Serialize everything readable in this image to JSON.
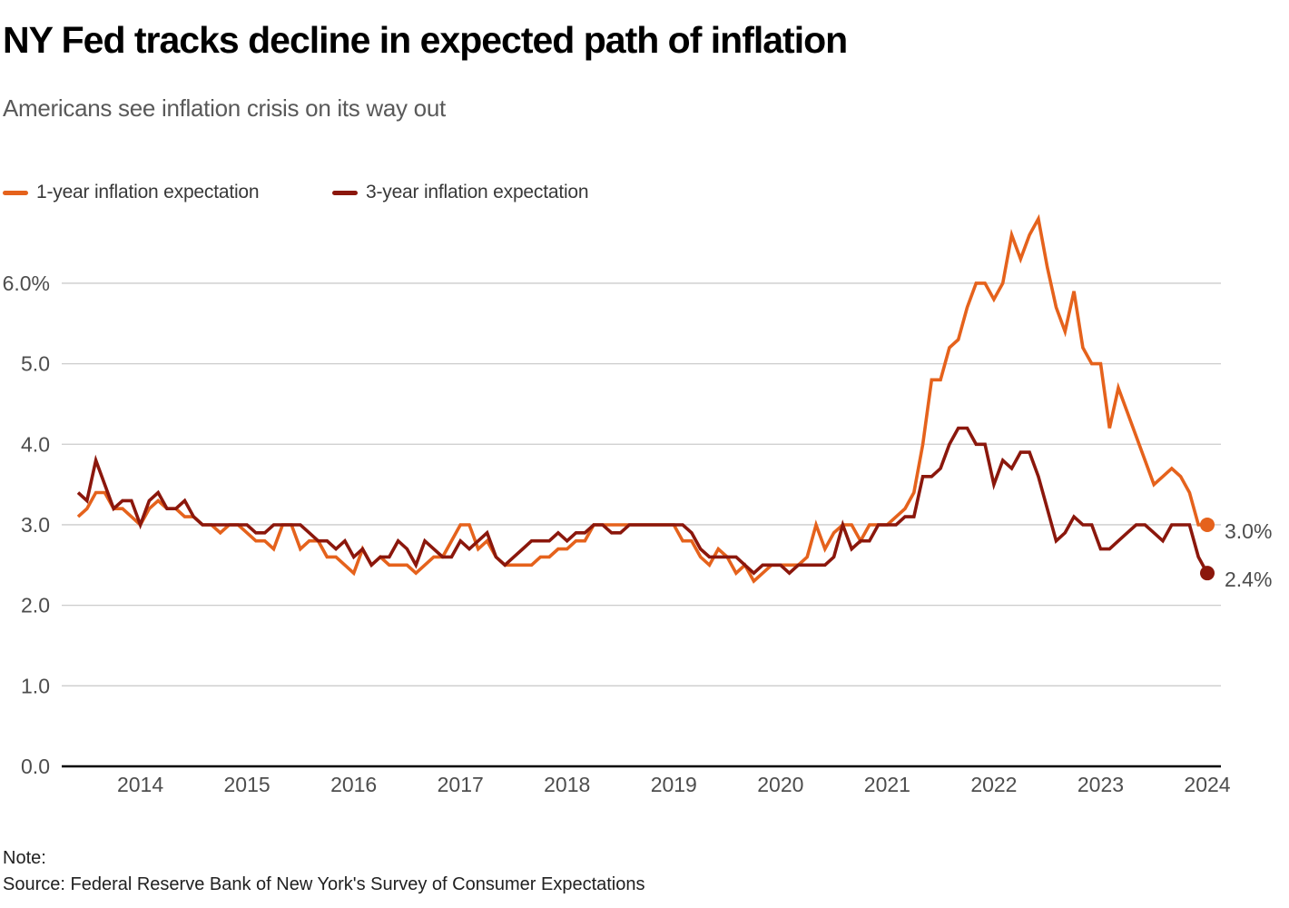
{
  "header": {
    "title": "NY Fed tracks decline in expected path of inflation",
    "subtitle": "Americans see inflation crisis on its way out"
  },
  "legend": {
    "items": [
      {
        "label": "1-year inflation expectation",
        "color": "#E5621C"
      },
      {
        "label": "3-year inflation expectation",
        "color": "#8B170C"
      }
    ]
  },
  "colors": {
    "orange": "#E5621C",
    "dark_red": "#8B170C",
    "gridline": "#cccccc",
    "axis": "#000000",
    "tick_text": "#4d4d4d",
    "end_label_text": "#4d4d4d"
  },
  "chart_data": {
    "type": "line",
    "unit": "%",
    "frequency": "monthly",
    "x_start": "2013-06",
    "x_end": "2024-01",
    "ylim": [
      0,
      6.8
    ],
    "grid": "horizontal",
    "legend_position": "top-left",
    "yticks": [
      {
        "value": 0,
        "label": "0.0"
      },
      {
        "value": 1,
        "label": "1.0"
      },
      {
        "value": 2,
        "label": "2.0"
      },
      {
        "value": 3,
        "label": "3.0"
      },
      {
        "value": 4,
        "label": "4.0"
      },
      {
        "value": 5,
        "label": "5.0"
      },
      {
        "value": 6,
        "label": "6.0%"
      }
    ],
    "xticks": [
      "2014",
      "2015",
      "2016",
      "2017",
      "2018",
      "2019",
      "2020",
      "2021",
      "2022",
      "2023",
      "2024"
    ],
    "series": [
      {
        "name": "1-year inflation expectation",
        "color": "#E5621C",
        "end_label": "3.0%",
        "end_value": 3.0,
        "values": [
          3.1,
          3.2,
          3.4,
          3.4,
          3.2,
          3.2,
          3.1,
          3.0,
          3.2,
          3.3,
          3.2,
          3.2,
          3.1,
          3.1,
          3.0,
          3.0,
          2.9,
          3.0,
          3.0,
          2.9,
          2.8,
          2.8,
          2.7,
          3.0,
          3.0,
          2.7,
          2.8,
          2.8,
          2.6,
          2.6,
          2.5,
          2.4,
          2.7,
          2.5,
          2.6,
          2.5,
          2.5,
          2.5,
          2.4,
          2.5,
          2.6,
          2.6,
          2.8,
          3.0,
          3.0,
          2.7,
          2.8,
          2.6,
          2.5,
          2.5,
          2.5,
          2.5,
          2.6,
          2.6,
          2.7,
          2.7,
          2.8,
          2.8,
          3.0,
          3.0,
          3.0,
          3.0,
          3.0,
          3.0,
          3.0,
          3.0,
          3.0,
          3.0,
          2.8,
          2.8,
          2.6,
          2.5,
          2.7,
          2.6,
          2.4,
          2.5,
          2.3,
          2.4,
          2.5,
          2.5,
          2.5,
          2.5,
          2.6,
          3.0,
          2.7,
          2.9,
          3.0,
          3.0,
          2.8,
          3.0,
          3.0,
          3.0,
          3.1,
          3.2,
          3.4,
          4.0,
          4.8,
          4.8,
          5.2,
          5.3,
          5.7,
          6.0,
          6.0,
          5.8,
          6.0,
          6.6,
          6.3,
          6.6,
          6.8,
          6.2,
          5.7,
          5.4,
          5.9,
          5.2,
          5.0,
          5.0,
          4.2,
          4.7,
          4.4,
          4.1,
          3.8,
          3.5,
          3.6,
          3.7,
          3.6,
          3.4,
          3.0,
          3.0
        ]
      },
      {
        "name": "3-year inflation expectation",
        "color": "#8B170C",
        "end_label": "2.4%",
        "end_value": 2.4,
        "values": [
          3.4,
          3.3,
          3.8,
          3.5,
          3.2,
          3.3,
          3.3,
          3.0,
          3.3,
          3.4,
          3.2,
          3.2,
          3.3,
          3.1,
          3.0,
          3.0,
          3.0,
          3.0,
          3.0,
          3.0,
          2.9,
          2.9,
          3.0,
          3.0,
          3.0,
          3.0,
          2.9,
          2.8,
          2.8,
          2.7,
          2.8,
          2.6,
          2.7,
          2.5,
          2.6,
          2.6,
          2.8,
          2.7,
          2.5,
          2.8,
          2.7,
          2.6,
          2.6,
          2.8,
          2.7,
          2.8,
          2.9,
          2.6,
          2.5,
          2.6,
          2.7,
          2.8,
          2.8,
          2.8,
          2.9,
          2.8,
          2.9,
          2.9,
          3.0,
          3.0,
          2.9,
          2.9,
          3.0,
          3.0,
          3.0,
          3.0,
          3.0,
          3.0,
          3.0,
          2.9,
          2.7,
          2.6,
          2.6,
          2.6,
          2.6,
          2.5,
          2.4,
          2.5,
          2.5,
          2.5,
          2.4,
          2.5,
          2.5,
          2.5,
          2.5,
          2.6,
          3.0,
          2.7,
          2.8,
          2.8,
          3.0,
          3.0,
          3.0,
          3.1,
          3.1,
          3.6,
          3.6,
          3.7,
          4.0,
          4.2,
          4.2,
          4.0,
          4.0,
          3.5,
          3.8,
          3.7,
          3.9,
          3.9,
          3.6,
          3.2,
          2.8,
          2.9,
          3.1,
          3.0,
          3.0,
          2.7,
          2.7,
          2.8,
          2.9,
          3.0,
          3.0,
          2.9,
          2.8,
          3.0,
          3.0,
          3.0,
          2.6,
          2.4
        ]
      }
    ]
  },
  "footer": {
    "note": "Note:",
    "source": "Source: Federal Reserve Bank of New York's Survey of Consumer Expectations"
  }
}
